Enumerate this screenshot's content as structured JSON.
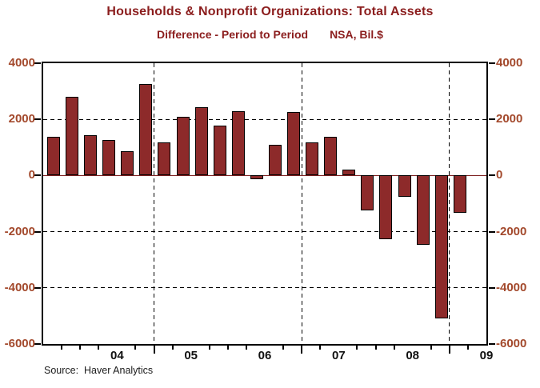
{
  "header": {
    "title": "Households & Nonprofit Organizations: Total Assets",
    "subtitle_left": "Difference - Period to Period",
    "subtitle_right": "NSA, Bil.$"
  },
  "source_note": "Source:  Haver Analytics",
  "colors": {
    "title_text": "#8B1D1D",
    "bar_fill": "#8D2A2A",
    "bar_border": "#000000",
    "y_label_text": "#A3492C",
    "x_label_text": "#111111",
    "zero_line": "#7D2121",
    "frame": "#000000"
  },
  "chart_data": {
    "type": "bar",
    "title": "Households & Nonprofit Organizations: Total Assets",
    "subtitle": "Difference - Period to Period    NSA, Bil.$",
    "ylabel": "Bil.$",
    "ylim": [
      -6000,
      4000
    ],
    "yticks": [
      4000,
      2000,
      0,
      -2000,
      -4000,
      -6000
    ],
    "grid_h_values": [
      2000,
      -2000,
      -4000
    ],
    "grid_on": true,
    "legend": "none",
    "x": [
      "2003Q3",
      "2003Q4",
      "2004Q1",
      "2004Q2",
      "2004Q3",
      "2004Q4",
      "2005Q1",
      "2005Q2",
      "2005Q3",
      "2005Q4",
      "2006Q1",
      "2006Q2",
      "2006Q3",
      "2006Q4",
      "2007Q1",
      "2007Q2",
      "2007Q3",
      "2007Q4",
      "2008Q1",
      "2008Q2",
      "2008Q3",
      "2008Q4",
      "2009Q1"
    ],
    "values": [
      1390,
      2790,
      1440,
      1270,
      860,
      3260,
      1170,
      2080,
      2420,
      1780,
      2280,
      -140,
      1090,
      2270,
      1170,
      1390,
      210,
      -1250,
      -2260,
      -750,
      -2460,
      -5080,
      -1320
    ],
    "x_axis": {
      "year_labels": [
        "04",
        "05",
        "06",
        "07",
        "08",
        "09"
      ],
      "year_label_qidx": [
        4,
        8,
        12,
        16,
        20,
        24
      ],
      "quarters_total": 24,
      "long_tick_qidx": [
        6,
        14,
        22
      ],
      "grid_v_qidx": [
        6,
        14,
        22
      ]
    }
  }
}
